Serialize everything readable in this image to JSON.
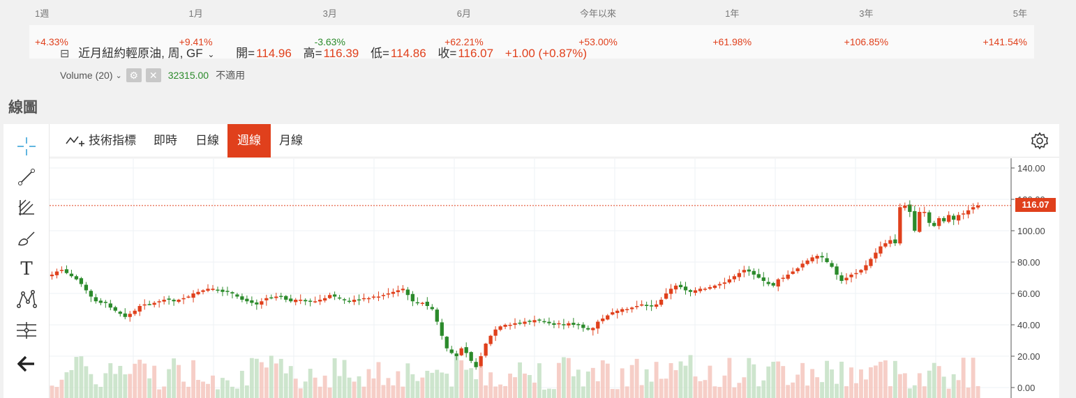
{
  "performance": {
    "periods": [
      {
        "label": "1週",
        "value": "+4.33%",
        "dir": "up"
      },
      {
        "label": "1月",
        "value": "+9.41%",
        "dir": "up"
      },
      {
        "label": "3月",
        "value": "-3.63%",
        "dir": "down"
      },
      {
        "label": "6月",
        "value": "+62.21%",
        "dir": "up"
      },
      {
        "label": "今年以來",
        "value": "+53.00%",
        "dir": "up"
      },
      {
        "label": "1年",
        "value": "+61.98%",
        "dir": "up"
      },
      {
        "label": "3年",
        "value": "+106.85%",
        "dir": "up"
      },
      {
        "label": "5年",
        "value": "+141.54%",
        "dir": "up"
      }
    ]
  },
  "section_title": "線圖",
  "toolbar": {
    "indicators_label": "技術指標",
    "realtime_label": "即時",
    "daily_label": "日線",
    "weekly_label": "週線",
    "monthly_label": "月線"
  },
  "legend": {
    "symbol": "近月紐約輕原油, 周, GF",
    "open_label": "開=",
    "open_value": "114.96",
    "high_label": "高=",
    "high_value": "116.39",
    "low_label": "低=",
    "low_value": "114.86",
    "close_label": "收=",
    "close_value": "116.07",
    "change": "+1.00 (+0.87%)"
  },
  "volume_legend": {
    "label": "Volume (20)",
    "value": "32315.00",
    "na": "不適用"
  },
  "last_price": "116.07",
  "colors": {
    "up": "#e0401c",
    "down": "#2b8a2b",
    "accent": "#e0401c"
  },
  "chart_data": {
    "type": "candlestick",
    "y_ticks": [
      "140.00",
      "120.00",
      "100.00",
      "80.00",
      "60.00",
      "40.00",
      "20.00",
      "0.00"
    ],
    "ylim": [
      0,
      140
    ],
    "closes": [
      72,
      74,
      75,
      73,
      71,
      69,
      66,
      62,
      58,
      55,
      54,
      54,
      51,
      49,
      47,
      45,
      47,
      49,
      52,
      53,
      53,
      54,
      55,
      56,
      56,
      55,
      56,
      57,
      58,
      60,
      61,
      62,
      63,
      63,
      62,
      61,
      61,
      60,
      58,
      56,
      55,
      54,
      53,
      55,
      57,
      57,
      58,
      58,
      56,
      55,
      56,
      56,
      55,
      55,
      55,
      56,
      57,
      59,
      58,
      57,
      56,
      55,
      56,
      56,
      57,
      57,
      58,
      58,
      59,
      60,
      61,
      62,
      63,
      59,
      55,
      54,
      54,
      52,
      50,
      42,
      33,
      25,
      22,
      20,
      25,
      22,
      17,
      13,
      20,
      28,
      33,
      37,
      39,
      40,
      40,
      41,
      41,
      42,
      42,
      43,
      43,
      42,
      41,
      40,
      41,
      40,
      41,
      40,
      40,
      38,
      37,
      38,
      42,
      44,
      46,
      48,
      49,
      50,
      50,
      51,
      52,
      53,
      52,
      52,
      53,
      56,
      60,
      63,
      65,
      64,
      62,
      61,
      62,
      63,
      63,
      64,
      65,
      66,
      67,
      69,
      71,
      73,
      75,
      74,
      72,
      70,
      68,
      66,
      65,
      69,
      70,
      72,
      74,
      76,
      79,
      81,
      83,
      84,
      83,
      80,
      77,
      72,
      68,
      70,
      72,
      73,
      75,
      78,
      82,
      86,
      90,
      92,
      94,
      92,
      115,
      116,
      112,
      100,
      112,
      112,
      105,
      103,
      108,
      106,
      110,
      107,
      110,
      111,
      113,
      115,
      116
    ]
  }
}
